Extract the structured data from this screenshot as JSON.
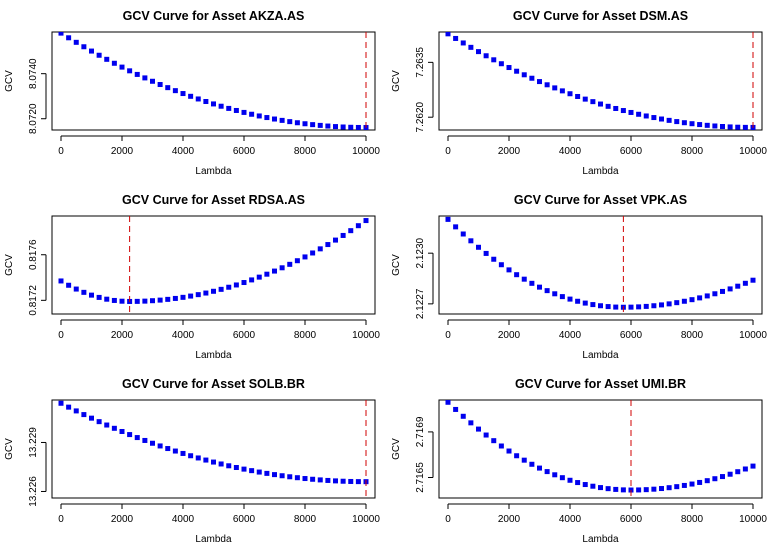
{
  "chart_data": [
    {
      "type": "scatter",
      "title": "GCV Curve for Asset AKZA.AS",
      "xlabel": "Lambda",
      "ylabel": "GCV",
      "x_ticks": [
        0,
        2000,
        4000,
        6000,
        8000,
        10000
      ],
      "y_ticks": [
        8.072,
        8.074
      ],
      "y_tick_labels": [
        "8.0720",
        "8.0740"
      ],
      "xlim": [
        0,
        10000
      ],
      "ylim": [
        8.0715,
        8.07585
      ],
      "marker_color": "#0000ee",
      "vline": {
        "x": 10000,
        "color": "#d00000",
        "style": "dashed"
      },
      "curve": {
        "x_start": 0,
        "x_end": 10000,
        "step": 250,
        "y_at_start": 8.0758,
        "y_min": 8.07161,
        "x_at_min": 10000
      }
    },
    {
      "type": "scatter",
      "title": "GCV Curve for Asset DSM.AS",
      "xlabel": "Lambda",
      "ylabel": "GCV",
      "x_ticks": [
        0,
        2000,
        4000,
        6000,
        8000,
        10000
      ],
      "y_ticks": [
        7.262,
        7.2635
      ],
      "y_tick_labels": [
        "7.2620",
        "7.2635"
      ],
      "xlim": [
        0,
        10000
      ],
      "ylim": [
        7.26165,
        7.26433
      ],
      "marker_color": "#0000ee",
      "vline": {
        "x": 10000,
        "color": "#d00000",
        "style": "dashed"
      },
      "curve": {
        "x_start": 0,
        "x_end": 10000,
        "step": 250,
        "y_at_start": 7.26428,
        "y_min": 7.26172,
        "x_at_min": 10000
      }
    },
    {
      "type": "scatter",
      "title": "GCV Curve for Asset RDSA.AS",
      "xlabel": "Lambda",
      "ylabel": "GCV",
      "x_ticks": [
        0,
        2000,
        4000,
        6000,
        8000,
        10000
      ],
      "y_ticks": [
        0.8172,
        0.8176
      ],
      "y_tick_labels": [
        "0.8172",
        "0.8176"
      ],
      "xlim": [
        0,
        10000
      ],
      "ylim": [
        0.81708,
        0.81794
      ],
      "marker_color": "#0000ee",
      "vline": {
        "x": 2250,
        "color": "#d00000",
        "style": "dashed"
      },
      "curve": {
        "x_start": 0,
        "x_end": 10000,
        "step": 250,
        "y_at_start": 0.81737,
        "y_min": 0.81719,
        "x_at_min": 2250,
        "y_at_end": 0.8179
      }
    },
    {
      "type": "scatter",
      "title": "GCV Curve for Asset VPK.AS",
      "xlabel": "Lambda",
      "ylabel": "GCV",
      "x_ticks": [
        0,
        2000,
        4000,
        6000,
        8000,
        10000
      ],
      "y_ticks": [
        2.1227,
        2.123
      ],
      "y_tick_labels": [
        "2.1227",
        "2.1230"
      ],
      "xlim": [
        0,
        10000
      ],
      "ylim": [
        2.12264,
        2.12322
      ],
      "marker_color": "#0000ee",
      "vline": {
        "x": 5750,
        "color": "#d00000",
        "style": "dashed"
      },
      "curve": {
        "x_start": 0,
        "x_end": 10000,
        "step": 250,
        "y_at_start": 2.1232,
        "y_min": 2.12268,
        "x_at_min": 5750,
        "y_at_end": 2.12284
      }
    },
    {
      "type": "scatter",
      "title": "GCV Curve for Asset SOLB.BR",
      "xlabel": "Lambda",
      "ylabel": "GCV",
      "x_ticks": [
        0,
        2000,
        4000,
        6000,
        8000,
        10000
      ],
      "y_ticks": [
        13.226,
        13.229
      ],
      "y_tick_labels": [
        "13.226",
        "13.229"
      ],
      "xlim": [
        0,
        10000
      ],
      "ylim": [
        13.2256,
        13.2316
      ],
      "marker_color": "#0000ee",
      "vline": {
        "x": 10000,
        "color": "#d00000",
        "style": "dashed"
      },
      "curve": {
        "x_start": 0,
        "x_end": 10000,
        "step": 250,
        "y_at_start": 13.2314,
        "y_min": 13.2266,
        "x_at_min": 10000
      }
    },
    {
      "type": "scatter",
      "title": "GCV Curve for Asset UMI.BR",
      "xlabel": "Lambda",
      "ylabel": "GCV",
      "x_ticks": [
        0,
        2000,
        4000,
        6000,
        8000,
        10000
      ],
      "y_ticks": [
        2.7165,
        2.7169
      ],
      "y_tick_labels": [
        "2.7165",
        "2.7169"
      ],
      "xlim": [
        0,
        10000
      ],
      "ylim": [
        2.71632,
        2.71718
      ],
      "marker_color": "#0000ee",
      "vline": {
        "x": 6000,
        "color": "#d00000",
        "style": "dashed"
      },
      "curve": {
        "x_start": 0,
        "x_end": 10000,
        "step": 250,
        "y_at_start": 2.71716,
        "y_min": 2.71639,
        "x_at_min": 6000,
        "y_at_end": 2.7166
      }
    }
  ]
}
